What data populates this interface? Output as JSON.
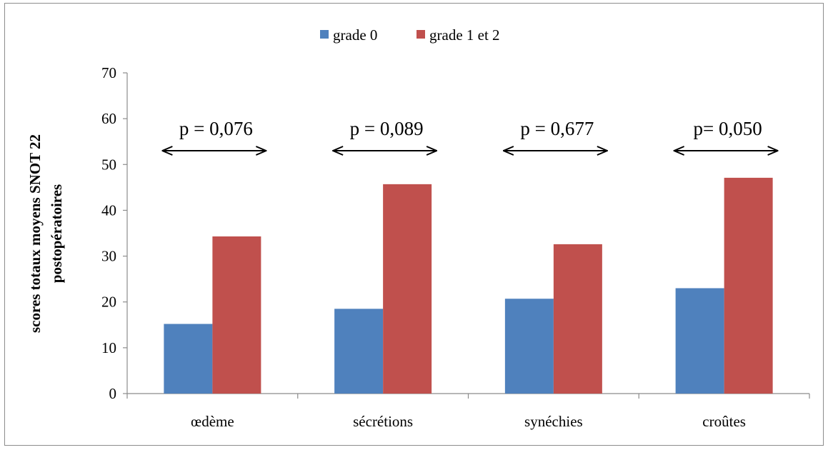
{
  "chart_data": {
    "type": "bar",
    "categories": [
      "œdème",
      "sécrétions",
      "synéchies",
      "croûtes"
    ],
    "series": [
      {
        "name": "grade 0",
        "values": [
          15.2,
          18.5,
          20.7,
          23.0
        ],
        "color": "#4f81bd"
      },
      {
        "name": "grade 1 et 2",
        "values": [
          34.3,
          45.7,
          32.6,
          47.1
        ],
        "color": "#c0504d"
      }
    ],
    "ylabel": [
      "scores totaux moyens  SNOT 22",
      "postopératoires"
    ],
    "xlabel": "",
    "ylim": [
      0,
      70
    ],
    "yticks": [
      0,
      10,
      20,
      30,
      40,
      50,
      60,
      70
    ],
    "legend": "top-center",
    "grid": false,
    "annotations": [
      {
        "text": "p = 0,076",
        "category": "œdème"
      },
      {
        "text": "p = 0,089",
        "category": "sécrétions"
      },
      {
        "text": "p = 0,677",
        "category": "synéchies"
      },
      {
        "text": "p= 0,050",
        "category": "croûtes"
      }
    ]
  }
}
